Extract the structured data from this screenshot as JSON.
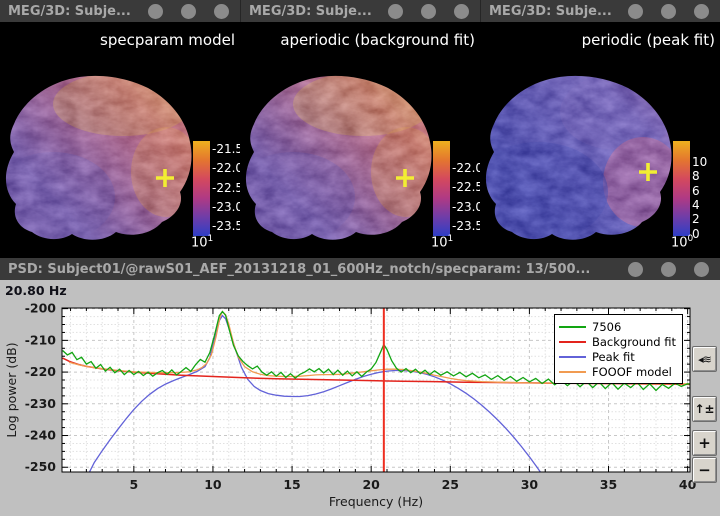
{
  "brain_windows": [
    {
      "title": "MEG/3D: Subje...",
      "label": "specparam model",
      "colorbar": {
        "ticks": [
          "-21.5",
          "-22.0",
          "-22.5",
          "-23.0",
          "-23.5"
        ],
        "base": "10",
        "exp": "1"
      }
    },
    {
      "title": "MEG/3D: Subje...",
      "label": "aperiodic (background fit)",
      "colorbar": {
        "ticks": [
          "-22.0",
          "-22.5",
          "-23.0",
          "-23.5"
        ],
        "base": "10",
        "exp": "1"
      }
    },
    {
      "title": "MEG/3D: Subje...",
      "label": "periodic (peak fit)",
      "colorbar": {
        "ticks": [
          "10",
          "8",
          "6",
          "4",
          "2",
          "0"
        ],
        "base": "10",
        "exp": "0"
      }
    }
  ],
  "colors": {
    "colorbar_gradient": [
      "#2e3ec6",
      "#6f3da8",
      "#b03a84",
      "#d4495e",
      "#e4762f",
      "#edb01e"
    ],
    "marker": "#f2ee33",
    "cursor": "#ee2e20",
    "titlebar_bg": "#3a3a3a",
    "plot_bg": "#c0c0c0",
    "palettes": [
      {
        "deep": "#6a4fb0",
        "mid": "#c65f7d",
        "hot": "#e08748",
        "glow": "#edb43c"
      },
      {
        "deep": "#6a4fb0",
        "mid": "#c86279",
        "hot": "#e28a44",
        "glow": "#eeb83e"
      },
      {
        "deep": "#3d3fb4",
        "mid": "#6a58c0",
        "hot": "#c25b8e",
        "glow": "#e89b48"
      }
    ]
  },
  "psd_window": {
    "title": "PSD: Subject01/@rawS01_AEF_20131218_01_600Hz_notch/specparam: 13/500...",
    "freq_cursor_label": "20.80 Hz",
    "buttons": [
      {
        "name": "channels-toggle",
        "glyph": "◂≋"
      },
      {
        "name": "amplitude-scale",
        "glyph": "↑±"
      },
      {
        "name": "zoom-in",
        "glyph": "+"
      },
      {
        "name": "zoom-out",
        "glyph": "−"
      }
    ]
  },
  "chart_data": {
    "type": "line",
    "title": "",
    "xlabel": "Frequency (Hz)",
    "ylabel": "Log power  (dB)",
    "xlim": [
      0.46,
      40.15
    ],
    "ylim": [
      -251.5,
      -199.8
    ],
    "xticks": [
      5,
      10,
      15,
      20,
      25,
      30,
      35,
      40
    ],
    "yticks": [
      -200,
      -210,
      -220,
      -230,
      -240,
      -250
    ],
    "x_minor_step": 1,
    "y_minor_step": 2.5,
    "grid": true,
    "legend_position": "top-right",
    "cursor_hz": 20.8,
    "series": [
      {
        "name": "7506",
        "color": "#12a512",
        "points": [
          [
            0.5,
            -213.2
          ],
          [
            0.8,
            -214.6
          ],
          [
            1.1,
            -213.8
          ],
          [
            1.4,
            -216.1
          ],
          [
            1.7,
            -215.3
          ],
          [
            2.0,
            -217.5
          ],
          [
            2.3,
            -216.7
          ],
          [
            2.6,
            -218.8
          ],
          [
            2.9,
            -217.6
          ],
          [
            3.2,
            -219.7
          ],
          [
            3.5,
            -218.5
          ],
          [
            3.8,
            -220.2
          ],
          [
            4.1,
            -219.1
          ],
          [
            4.4,
            -220.8
          ],
          [
            4.7,
            -219.5
          ],
          [
            5.0,
            -220.8
          ],
          [
            5.3,
            -219.8
          ],
          [
            5.6,
            -221.1
          ],
          [
            5.9,
            -220.0
          ],
          [
            6.2,
            -221.3
          ],
          [
            6.5,
            -220.2
          ],
          [
            6.8,
            -219.5
          ],
          [
            7.1,
            -220.7
          ],
          [
            7.4,
            -219.3
          ],
          [
            7.7,
            -220.9
          ],
          [
            8.0,
            -219.8
          ],
          [
            8.3,
            -218.6
          ],
          [
            8.6,
            -219.8
          ],
          [
            8.9,
            -217.7
          ],
          [
            9.2,
            -216.0
          ],
          [
            9.5,
            -216.9
          ],
          [
            9.8,
            -213.9
          ],
          [
            10.1,
            -208.4
          ],
          [
            10.4,
            -202.2
          ],
          [
            10.6,
            -200.9
          ],
          [
            10.8,
            -202.1
          ],
          [
            11.0,
            -206.1
          ],
          [
            11.3,
            -211.6
          ],
          [
            11.6,
            -214.9
          ],
          [
            11.9,
            -216.7
          ],
          [
            12.2,
            -218.0
          ],
          [
            12.5,
            -219.0
          ],
          [
            12.8,
            -218.1
          ],
          [
            13.1,
            -220.0
          ],
          [
            13.4,
            -221.0
          ],
          [
            13.7,
            -219.9
          ],
          [
            14.0,
            -221.3
          ],
          [
            14.3,
            -220.1
          ],
          [
            14.6,
            -221.7
          ],
          [
            14.9,
            -220.5
          ],
          [
            15.2,
            -221.9
          ],
          [
            15.5,
            -220.7
          ],
          [
            15.8,
            -220.0
          ],
          [
            16.1,
            -219.0
          ],
          [
            16.4,
            -219.9
          ],
          [
            16.7,
            -218.9
          ],
          [
            17.0,
            -220.3
          ],
          [
            17.3,
            -219.1
          ],
          [
            17.6,
            -220.8
          ],
          [
            17.9,
            -219.4
          ],
          [
            18.2,
            -221.0
          ],
          [
            18.5,
            -219.7
          ],
          [
            18.8,
            -221.2
          ],
          [
            19.1,
            -219.9
          ],
          [
            19.4,
            -221.4
          ],
          [
            19.7,
            -220.0
          ],
          [
            20.0,
            -219.0
          ],
          [
            20.3,
            -217.0
          ],
          [
            20.6,
            -213.6
          ],
          [
            20.8,
            -211.3
          ],
          [
            21.0,
            -212.9
          ],
          [
            21.3,
            -216.4
          ],
          [
            21.6,
            -218.8
          ],
          [
            21.9,
            -220.0
          ],
          [
            22.2,
            -218.9
          ],
          [
            22.5,
            -220.2
          ],
          [
            22.8,
            -219.1
          ],
          [
            23.1,
            -220.5
          ],
          [
            23.4,
            -219.4
          ],
          [
            23.7,
            -220.8
          ],
          [
            24.0,
            -219.6
          ],
          [
            24.4,
            -221.0
          ],
          [
            24.8,
            -219.9
          ],
          [
            25.2,
            -221.2
          ],
          [
            25.6,
            -220.1
          ],
          [
            26.0,
            -221.5
          ],
          [
            26.4,
            -220.4
          ],
          [
            26.8,
            -221.8
          ],
          [
            27.2,
            -220.9
          ],
          [
            27.6,
            -222.3
          ],
          [
            28.0,
            -221.1
          ],
          [
            28.4,
            -222.6
          ],
          [
            28.8,
            -221.4
          ],
          [
            29.2,
            -222.9
          ],
          [
            29.6,
            -221.7
          ],
          [
            30.0,
            -223.1
          ],
          [
            30.4,
            -222.0
          ],
          [
            30.8,
            -223.6
          ],
          [
            31.2,
            -222.2
          ],
          [
            31.6,
            -224.0
          ],
          [
            32.0,
            -222.5
          ],
          [
            32.4,
            -224.3
          ],
          [
            32.8,
            -222.7
          ],
          [
            33.2,
            -224.6
          ],
          [
            33.6,
            -222.9
          ],
          [
            34.0,
            -224.9
          ],
          [
            34.4,
            -223.1
          ],
          [
            34.8,
            -225.2
          ],
          [
            35.2,
            -223.3
          ],
          [
            35.6,
            -225.4
          ],
          [
            36.0,
            -223.5
          ],
          [
            36.4,
            -224.9
          ],
          [
            36.8,
            -223.2
          ],
          [
            37.2,
            -225.5
          ],
          [
            37.6,
            -223.7
          ],
          [
            38.0,
            -225.8
          ],
          [
            38.4,
            -223.9
          ],
          [
            38.8,
            -225.1
          ],
          [
            39.2,
            -223.5
          ],
          [
            39.6,
            -224.5
          ],
          [
            40.0,
            -223.7
          ],
          [
            40.15,
            -223.8
          ]
        ]
      },
      {
        "name": "Background fit",
        "color": "#e3241d",
        "points": [
          [
            0.5,
            -215.6
          ],
          [
            1,
            -216.8
          ],
          [
            1.5,
            -217.6
          ],
          [
            2,
            -218.2
          ],
          [
            2.5,
            -218.6
          ],
          [
            3,
            -219.0
          ],
          [
            4,
            -219.6
          ],
          [
            5,
            -220.0
          ],
          [
            6,
            -220.4
          ],
          [
            7,
            -220.7
          ],
          [
            8,
            -221.0
          ],
          [
            9,
            -221.2
          ],
          [
            10,
            -221.4
          ],
          [
            12,
            -221.8
          ],
          [
            14,
            -222.1
          ],
          [
            16,
            -222.3
          ],
          [
            18,
            -222.5
          ],
          [
            20,
            -222.7
          ],
          [
            22,
            -222.9
          ],
          [
            24,
            -223.0
          ],
          [
            26,
            -223.2
          ],
          [
            28,
            -223.3
          ],
          [
            30,
            -223.4
          ],
          [
            32,
            -223.5
          ],
          [
            34,
            -223.6
          ],
          [
            36,
            -223.7
          ],
          [
            38,
            -223.8
          ],
          [
            40.15,
            -223.9
          ]
        ]
      },
      {
        "name": "Peak fit",
        "color": "#6262d8",
        "points": [
          [
            2.15,
            -252
          ],
          [
            2.5,
            -248.5
          ],
          [
            3,
            -244.8
          ],
          [
            3.5,
            -241.3
          ],
          [
            4,
            -238
          ],
          [
            4.5,
            -234.8
          ],
          [
            5,
            -231.8
          ],
          [
            5.5,
            -229.2
          ],
          [
            6,
            -227
          ],
          [
            6.5,
            -225.2
          ],
          [
            7,
            -223.8
          ],
          [
            7.5,
            -222.7
          ],
          [
            8,
            -221.7
          ],
          [
            8.5,
            -220.8
          ],
          [
            9,
            -219.8
          ],
          [
            9.5,
            -218.3
          ],
          [
            9.8,
            -215.5
          ],
          [
            10.1,
            -209.5
          ],
          [
            10.4,
            -203.8
          ],
          [
            10.6,
            -202.2
          ],
          [
            10.8,
            -203.2
          ],
          [
            11.1,
            -207.5
          ],
          [
            11.4,
            -212.5
          ],
          [
            11.8,
            -218.5
          ],
          [
            12.2,
            -222.3
          ],
          [
            12.6,
            -224.5
          ],
          [
            13,
            -225.8
          ],
          [
            13.5,
            -226.8
          ],
          [
            14,
            -227.3
          ],
          [
            14.5,
            -227.6
          ],
          [
            15,
            -227.7
          ],
          [
            15.5,
            -227.7
          ],
          [
            16,
            -227.4
          ],
          [
            16.5,
            -226.9
          ],
          [
            17,
            -226.2
          ],
          [
            17.5,
            -225.3
          ],
          [
            18,
            -224.3
          ],
          [
            18.5,
            -223.3
          ],
          [
            19,
            -222.3
          ],
          [
            19.5,
            -221.4
          ],
          [
            20,
            -220.7
          ],
          [
            20.5,
            -220.1
          ],
          [
            21,
            -219.7
          ],
          [
            21.5,
            -219.5
          ],
          [
            22,
            -219.5
          ],
          [
            22.5,
            -219.7
          ],
          [
            23,
            -220.1
          ],
          [
            23.5,
            -220.7
          ],
          [
            24,
            -221.5
          ],
          [
            24.5,
            -222.5
          ],
          [
            25,
            -223.7
          ],
          [
            25.5,
            -225.1
          ],
          [
            26,
            -226.7
          ],
          [
            26.5,
            -228.5
          ],
          [
            27,
            -230.5
          ],
          [
            27.5,
            -232.7
          ],
          [
            28,
            -235.1
          ],
          [
            28.5,
            -237.7
          ],
          [
            29,
            -240.5
          ],
          [
            29.5,
            -243.5
          ],
          [
            30,
            -246.7
          ],
          [
            30.5,
            -250.1
          ],
          [
            31,
            -253.7
          ],
          [
            31.4,
            -256
          ]
        ]
      },
      {
        "name": "FOOOF model",
        "color": "#f19b51",
        "points": [
          [
            0.9,
            -216.9
          ],
          [
            1.5,
            -217.7
          ],
          [
            2,
            -218.2
          ],
          [
            2.5,
            -218.6
          ],
          [
            3,
            -218.9
          ],
          [
            3.5,
            -219.2
          ],
          [
            4,
            -219.5
          ],
          [
            4.5,
            -219.7
          ],
          [
            5,
            -219.9
          ],
          [
            5.5,
            -220.0
          ],
          [
            6,
            -220.1
          ],
          [
            6.5,
            -220.2
          ],
          [
            7,
            -220.2
          ],
          [
            7.5,
            -220.2
          ],
          [
            8,
            -220.1
          ],
          [
            8.5,
            -219.9
          ],
          [
            9,
            -219.3
          ],
          [
            9.3,
            -218.6
          ],
          [
            9.6,
            -217.3
          ],
          [
            9.9,
            -214.6
          ],
          [
            10.2,
            -208.8
          ],
          [
            10.45,
            -202.6
          ],
          [
            10.6,
            -200.9
          ],
          [
            10.8,
            -201.9
          ],
          [
            11,
            -204.9
          ],
          [
            11.3,
            -210.9
          ],
          [
            11.6,
            -215.3
          ],
          [
            12,
            -218.3
          ],
          [
            12.5,
            -219.9
          ],
          [
            13,
            -220.7
          ],
          [
            13.5,
            -221.1
          ],
          [
            14,
            -221.3
          ],
          [
            14.5,
            -221.4
          ],
          [
            15,
            -221.4
          ],
          [
            15.5,
            -221.3
          ],
          [
            16,
            -221.1
          ],
          [
            16.5,
            -220.9
          ],
          [
            17,
            -220.8
          ],
          [
            17.5,
            -220.8
          ],
          [
            18,
            -220.7
          ],
          [
            18.5,
            -220.5
          ],
          [
            19,
            -220.2
          ],
          [
            19.5,
            -219.9
          ],
          [
            20,
            -219.6
          ],
          [
            20.5,
            -219.3
          ],
          [
            21,
            -219.1
          ],
          [
            21.5,
            -219.1
          ],
          [
            22,
            -219.2
          ],
          [
            22.5,
            -219.5
          ],
          [
            23,
            -219.9
          ],
          [
            23.5,
            -220.4
          ],
          [
            24,
            -221.0
          ],
          [
            24.5,
            -221.5
          ],
          [
            25,
            -222.0
          ],
          [
            25.5,
            -222.4
          ],
          [
            26,
            -222.7
          ],
          [
            27,
            -223.0
          ],
          [
            28,
            -223.2
          ],
          [
            29,
            -223.3
          ],
          [
            30,
            -223.4
          ],
          [
            32,
            -223.5
          ],
          [
            34,
            -223.6
          ],
          [
            36,
            -223.6
          ],
          [
            38,
            -223.7
          ],
          [
            40.15,
            -223.7
          ]
        ]
      }
    ]
  }
}
